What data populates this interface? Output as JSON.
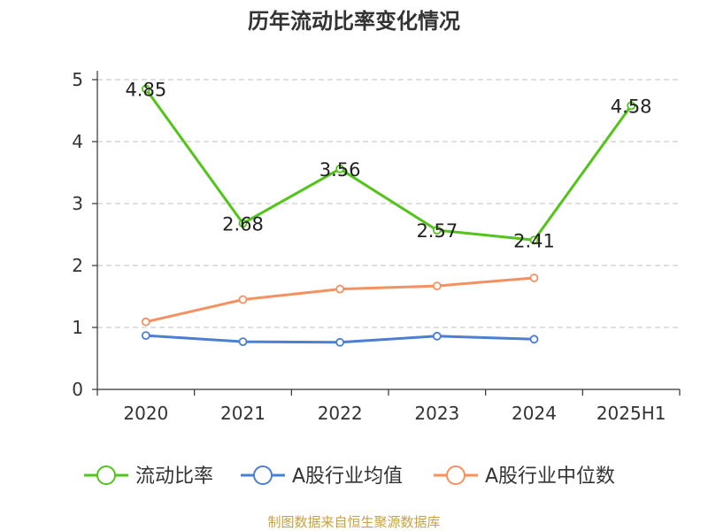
{
  "chart_data": {
    "type": "line",
    "title": "历年流动比率变化情况",
    "categories": [
      "2020",
      "2021",
      "2022",
      "2023",
      "2024",
      "2025H1"
    ],
    "ylim": [
      0,
      5
    ],
    "yticks": [
      "0",
      "1",
      "2",
      "3",
      "4",
      "5"
    ],
    "grid": true,
    "legend_position": "bottom",
    "series": [
      {
        "name": "流动比率",
        "color": "#52c41a",
        "values": [
          4.85,
          2.68,
          3.56,
          2.57,
          2.41,
          4.58
        ],
        "labels": [
          "4.85",
          "2.68",
          "3.56",
          "2.57",
          "2.41",
          "4.58"
        ]
      },
      {
        "name": "A股行业均值",
        "color": "#4a7fd4",
        "values": [
          0.87,
          0.77,
          0.76,
          0.86,
          0.81,
          null
        ]
      },
      {
        "name": "A股行业中位数",
        "color": "#f59160",
        "values": [
          1.09,
          1.45,
          1.62,
          1.67,
          1.8,
          null
        ]
      }
    ],
    "source": "制图数据来自恒生聚源数据库"
  }
}
